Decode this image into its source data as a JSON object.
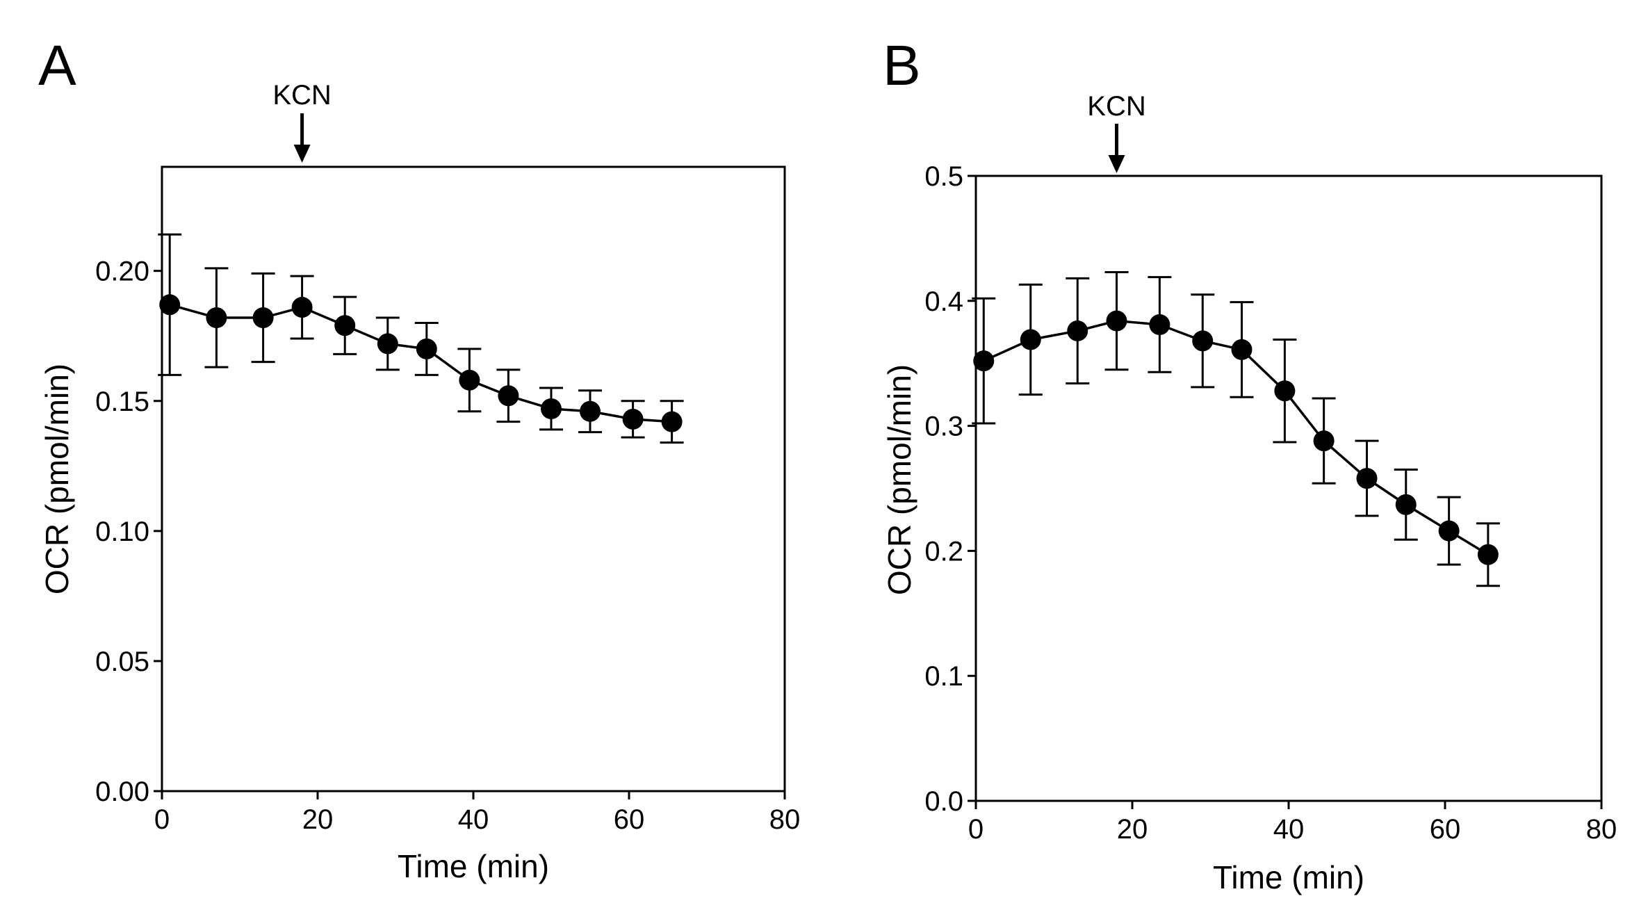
{
  "chart_data": [
    {
      "panel_label": "A",
      "type": "line",
      "title": "",
      "xlabel": "Time (min)",
      "ylabel": "OCR (pmol/min)",
      "xlim": [
        0,
        80
      ],
      "ylim": [
        0,
        0.24
      ],
      "xticks": [
        0,
        20,
        40,
        60,
        80
      ],
      "xtick_labels": [
        "0",
        "20",
        "40",
        "60",
        "80"
      ],
      "yticks": [
        0,
        0.05,
        0.1,
        0.15,
        0.2
      ],
      "ytick_labels": [
        "0.00",
        "0.05",
        "0.10",
        "0.15",
        "0.20"
      ],
      "grid": false,
      "annotation": {
        "label": "KCN",
        "x": 18,
        "marker": "down-arrow"
      },
      "series": [
        {
          "name": "OCR",
          "x": [
            1,
            7,
            13,
            18,
            23.5,
            29,
            34,
            39.5,
            44.5,
            50,
            55,
            60.5,
            65.5
          ],
          "y": [
            0.187,
            0.182,
            0.182,
            0.186,
            0.179,
            0.172,
            0.17,
            0.158,
            0.152,
            0.147,
            0.146,
            0.143,
            0.142
          ],
          "error": [
            0.027,
            0.019,
            0.017,
            0.012,
            0.011,
            0.01,
            0.01,
            0.012,
            0.01,
            0.008,
            0.008,
            0.007,
            0.008
          ]
        }
      ]
    },
    {
      "panel_label": "B",
      "type": "line",
      "title": "",
      "xlabel": "Time (min)",
      "ylabel": "OCR (pmol/min)",
      "xlim": [
        0,
        80
      ],
      "ylim": [
        0,
        0.5
      ],
      "xticks": [
        0,
        20,
        40,
        60,
        80
      ],
      "xtick_labels": [
        "0",
        "20",
        "40",
        "60",
        "80"
      ],
      "yticks": [
        0,
        0.1,
        0.2,
        0.3,
        0.4,
        0.5
      ],
      "ytick_labels": [
        "0.0",
        "0.1",
        "0.2",
        "0.3",
        "0.4",
        "0.5"
      ],
      "grid": false,
      "annotation": {
        "label": "KCN",
        "x": 18,
        "marker": "down-arrow"
      },
      "series": [
        {
          "name": "OCR",
          "x": [
            1,
            7,
            13,
            18,
            23.5,
            29,
            34,
            39.5,
            44.5,
            50,
            55,
            60.5,
            65.5
          ],
          "y": [
            0.352,
            0.369,
            0.376,
            0.384,
            0.381,
            0.368,
            0.361,
            0.328,
            0.288,
            0.258,
            0.237,
            0.216,
            0.197
          ],
          "error": [
            0.05,
            0.044,
            0.042,
            0.039,
            0.038,
            0.037,
            0.038,
            0.041,
            0.034,
            0.03,
            0.028,
            0.027,
            0.025
          ]
        }
      ]
    }
  ]
}
